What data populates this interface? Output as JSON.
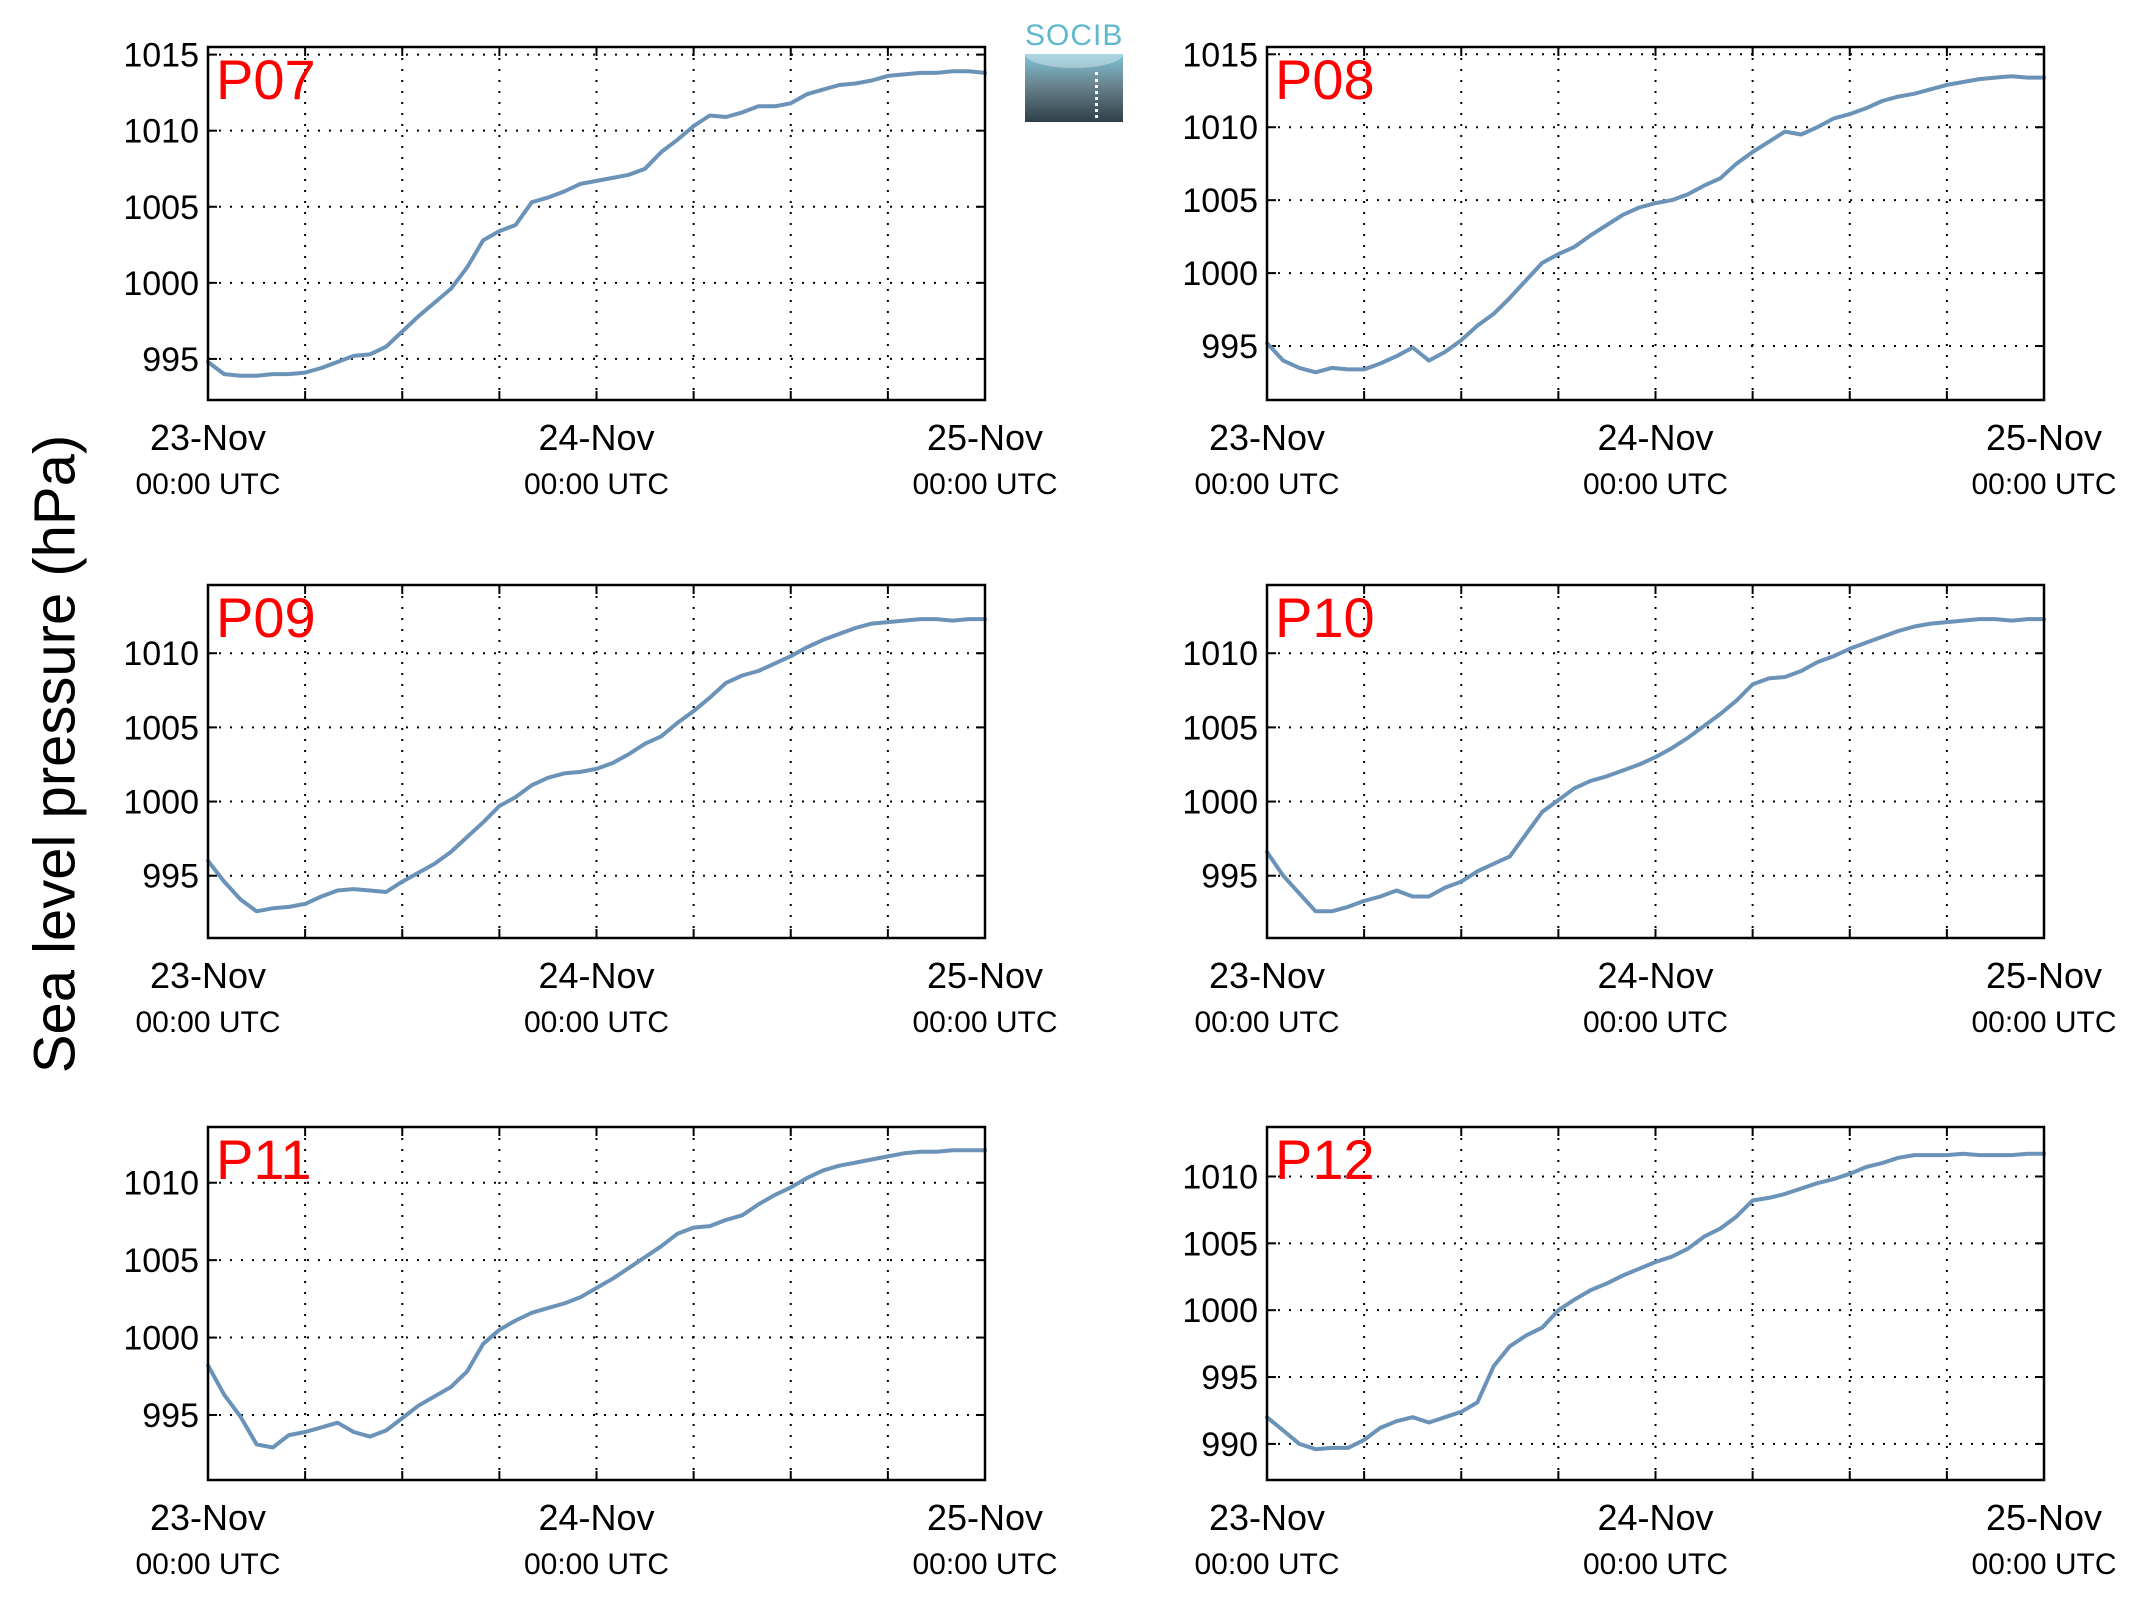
{
  "figure": {
    "ylabel": "Sea level pressure (hPa)",
    "logo_text": "SOCIB",
    "colors": {
      "line": "#6b93b8",
      "station_label": "#ff0000",
      "axes": "#000000",
      "grid": "#000000"
    },
    "grid": "dotted"
  },
  "chart_data": [
    {
      "type": "line",
      "title": "P07",
      "x_ticks": [
        0,
        24,
        48
      ],
      "xtick_labels": [
        [
          "23-Nov",
          "00:00 UTC"
        ],
        [
          "24-Nov",
          "00:00 UTC"
        ],
        [
          "25-Nov",
          "00:00 UTC"
        ]
      ],
      "x_grid": [
        0,
        6,
        12,
        18,
        24,
        30,
        36,
        42,
        48
      ],
      "xlim": [
        0,
        48
      ],
      "ylim": [
        992.3,
        1015.5
      ],
      "yticks": [
        995,
        1000,
        1005,
        1010,
        1015
      ],
      "series": [
        {
          "x": [
            0,
            1,
            2,
            3,
            4,
            5,
            6,
            7,
            8,
            9,
            10,
            11,
            12,
            13,
            14,
            15,
            16,
            17,
            18,
            19,
            20,
            21,
            22,
            23,
            24,
            25,
            26,
            27,
            28,
            29,
            30,
            31,
            32,
            33,
            34,
            35,
            36,
            37,
            38,
            39,
            40,
            41,
            42,
            43,
            44,
            45,
            46,
            47,
            48
          ],
          "y": [
            994.8,
            994.0,
            993.9,
            993.9,
            994.0,
            994.0,
            994.1,
            994.4,
            994.8,
            995.2,
            995.3,
            995.8,
            996.8,
            997.8,
            998.7,
            999.6,
            1001.0,
            1002.8,
            1003.4,
            1003.8,
            1005.3,
            1005.6,
            1006.0,
            1006.5,
            1006.7,
            1006.9,
            1007.1,
            1007.5,
            1008.6,
            1009.4,
            1010.3,
            1011.0,
            1010.9,
            1011.2,
            1011.6,
            1011.6,
            1011.8,
            1012.4,
            1012.7,
            1013.0,
            1013.1,
            1013.3,
            1013.6,
            1013.7,
            1013.8,
            1013.8,
            1013.9,
            1013.9,
            1013.8
          ]
        }
      ]
    },
    {
      "type": "line",
      "title": "P08",
      "x_ticks": [
        0,
        24,
        48
      ],
      "xtick_labels": [
        [
          "23-Nov",
          "00:00 UTC"
        ],
        [
          "24-Nov",
          "00:00 UTC"
        ],
        [
          "25-Nov",
          "00:00 UTC"
        ]
      ],
      "x_grid": [
        0,
        6,
        12,
        18,
        24,
        30,
        36,
        42,
        48
      ],
      "xlim": [
        0,
        48
      ],
      "ylim": [
        991.3,
        1015.5
      ],
      "yticks": [
        995,
        1000,
        1005,
        1010,
        1015
      ],
      "series": [
        {
          "x": [
            0,
            1,
            2,
            3,
            4,
            5,
            6,
            7,
            8,
            9,
            10,
            11,
            12,
            13,
            14,
            15,
            16,
            17,
            18,
            19,
            20,
            21,
            22,
            23,
            24,
            25,
            26,
            27,
            28,
            29,
            30,
            31,
            32,
            33,
            34,
            35,
            36,
            37,
            38,
            39,
            40,
            41,
            42,
            43,
            44,
            45,
            46,
            47,
            48
          ],
          "y": [
            995.2,
            994.0,
            993.5,
            993.2,
            993.5,
            993.4,
            993.4,
            993.8,
            994.3,
            994.9,
            994.0,
            994.6,
            995.4,
            996.4,
            997.2,
            998.3,
            999.5,
            1000.7,
            1001.3,
            1001.8,
            1002.6,
            1003.3,
            1004.0,
            1004.5,
            1004.8,
            1005.0,
            1005.4,
            1006.0,
            1006.5,
            1007.5,
            1008.3,
            1009.0,
            1009.7,
            1009.5,
            1010.0,
            1010.6,
            1010.9,
            1011.3,
            1011.8,
            1012.1,
            1012.3,
            1012.6,
            1012.9,
            1013.1,
            1013.3,
            1013.4,
            1013.5,
            1013.4,
            1013.4
          ]
        }
      ]
    },
    {
      "type": "line",
      "title": "P09",
      "x_ticks": [
        0,
        24,
        48
      ],
      "xtick_labels": [
        [
          "23-Nov",
          "00:00 UTC"
        ],
        [
          "24-Nov",
          "00:00 UTC"
        ],
        [
          "25-Nov",
          "00:00 UTC"
        ]
      ],
      "x_grid": [
        0,
        6,
        12,
        18,
        24,
        30,
        36,
        42,
        48
      ],
      "xlim": [
        0,
        48
      ],
      "ylim": [
        990.8,
        1014.6
      ],
      "yticks": [
        995,
        1000,
        1005,
        1010
      ],
      "series": [
        {
          "x": [
            0,
            1,
            2,
            3,
            4,
            5,
            6,
            7,
            8,
            9,
            10,
            11,
            12,
            13,
            14,
            15,
            16,
            17,
            18,
            19,
            20,
            21,
            22,
            23,
            24,
            25,
            26,
            27,
            28,
            29,
            30,
            31,
            32,
            33,
            34,
            35,
            36,
            37,
            38,
            39,
            40,
            41,
            42,
            43,
            44,
            45,
            46,
            47,
            48
          ],
          "y": [
            996.0,
            994.6,
            993.4,
            992.6,
            992.8,
            992.9,
            993.1,
            993.6,
            994.0,
            994.1,
            994.0,
            993.9,
            994.6,
            995.2,
            995.8,
            996.6,
            997.6,
            998.6,
            999.7,
            1000.3,
            1001.1,
            1001.6,
            1001.9,
            1002.0,
            1002.2,
            1002.6,
            1003.2,
            1003.9,
            1004.4,
            1005.3,
            1006.1,
            1007.0,
            1008.0,
            1008.5,
            1008.8,
            1009.3,
            1009.8,
            1010.4,
            1010.9,
            1011.3,
            1011.7,
            1012.0,
            1012.1,
            1012.2,
            1012.3,
            1012.3,
            1012.2,
            1012.3,
            1012.3
          ]
        }
      ]
    },
    {
      "type": "line",
      "title": "P10",
      "x_ticks": [
        0,
        24,
        48
      ],
      "xtick_labels": [
        [
          "23-Nov",
          "00:00 UTC"
        ],
        [
          "24-Nov",
          "00:00 UTC"
        ],
        [
          "25-Nov",
          "00:00 UTC"
        ]
      ],
      "x_grid": [
        0,
        6,
        12,
        18,
        24,
        30,
        36,
        42,
        48
      ],
      "xlim": [
        0,
        48
      ],
      "ylim": [
        990.8,
        1014.6
      ],
      "yticks": [
        995,
        1000,
        1005,
        1010
      ],
      "series": [
        {
          "x": [
            0,
            1,
            2,
            3,
            4,
            5,
            6,
            7,
            8,
            9,
            10,
            11,
            12,
            13,
            14,
            15,
            16,
            17,
            18,
            19,
            20,
            21,
            22,
            23,
            24,
            25,
            26,
            27,
            28,
            29,
            30,
            31,
            32,
            33,
            34,
            35,
            36,
            37,
            38,
            39,
            40,
            41,
            42,
            43,
            44,
            45,
            46,
            47,
            48
          ],
          "y": [
            996.6,
            995.0,
            993.8,
            992.6,
            992.6,
            992.9,
            993.3,
            993.6,
            994.0,
            993.6,
            993.6,
            994.2,
            994.6,
            995.3,
            995.8,
            996.3,
            997.8,
            999.3,
            1000.1,
            1000.9,
            1001.4,
            1001.7,
            1002.1,
            1002.5,
            1003.0,
            1003.6,
            1004.3,
            1005.1,
            1005.9,
            1006.8,
            1007.9,
            1008.3,
            1008.4,
            1008.8,
            1009.4,
            1009.8,
            1010.3,
            1010.7,
            1011.1,
            1011.5,
            1011.8,
            1012.0,
            1012.1,
            1012.2,
            1012.3,
            1012.3,
            1012.2,
            1012.3,
            1012.3
          ]
        }
      ]
    },
    {
      "type": "line",
      "title": "P11",
      "x_ticks": [
        0,
        24,
        48
      ],
      "xtick_labels": [
        [
          "23-Nov",
          "00:00 UTC"
        ],
        [
          "24-Nov",
          "00:00 UTC"
        ],
        [
          "25-Nov",
          "00:00 UTC"
        ]
      ],
      "x_grid": [
        0,
        6,
        12,
        18,
        24,
        30,
        36,
        42,
        48
      ],
      "xlim": [
        0,
        48
      ],
      "ylim": [
        990.8,
        1013.6
      ],
      "yticks": [
        995,
        1000,
        1005,
        1010
      ],
      "series": [
        {
          "x": [
            0,
            1,
            2,
            3,
            4,
            5,
            6,
            7,
            8,
            9,
            10,
            11,
            12,
            13,
            14,
            15,
            16,
            17,
            18,
            19,
            20,
            21,
            22,
            23,
            24,
            25,
            26,
            27,
            28,
            29,
            30,
            31,
            32,
            33,
            34,
            35,
            36,
            37,
            38,
            39,
            40,
            41,
            42,
            43,
            44,
            45,
            46,
            47,
            48
          ],
          "y": [
            998.2,
            996.3,
            994.9,
            993.1,
            992.9,
            993.7,
            993.9,
            994.2,
            994.5,
            993.9,
            993.6,
            994.0,
            994.8,
            995.6,
            996.2,
            996.8,
            997.8,
            999.6,
            1000.5,
            1001.1,
            1001.6,
            1001.9,
            1002.2,
            1002.6,
            1003.2,
            1003.8,
            1004.5,
            1005.2,
            1005.9,
            1006.7,
            1007.1,
            1007.2,
            1007.6,
            1007.9,
            1008.6,
            1009.2,
            1009.7,
            1010.3,
            1010.8,
            1011.1,
            1011.3,
            1011.5,
            1011.7,
            1011.9,
            1012.0,
            1012.0,
            1012.1,
            1012.1,
            1012.1
          ]
        }
      ]
    },
    {
      "type": "line",
      "title": "P12",
      "x_ticks": [
        0,
        24,
        48
      ],
      "xtick_labels": [
        [
          "23-Nov",
          "00:00 UTC"
        ],
        [
          "24-Nov",
          "00:00 UTC"
        ],
        [
          "25-Nov",
          "00:00 UTC"
        ]
      ],
      "x_grid": [
        0,
        6,
        12,
        18,
        24,
        30,
        36,
        42,
        48
      ],
      "xlim": [
        0,
        48
      ],
      "ylim": [
        987.3,
        1013.7
      ],
      "yticks": [
        990,
        995,
        1000,
        1005,
        1010
      ],
      "series": [
        {
          "x": [
            0,
            1,
            2,
            3,
            4,
            5,
            6,
            7,
            8,
            9,
            10,
            11,
            12,
            13,
            14,
            15,
            16,
            17,
            18,
            19,
            20,
            21,
            22,
            23,
            24,
            25,
            26,
            27,
            28,
            29,
            30,
            31,
            32,
            33,
            34,
            35,
            36,
            37,
            38,
            39,
            40,
            41,
            42,
            43,
            44,
            45,
            46,
            47,
            48
          ],
          "y": [
            992.0,
            991.0,
            990.0,
            989.6,
            989.7,
            989.7,
            990.3,
            991.2,
            991.7,
            992.0,
            991.6,
            992.0,
            992.4,
            993.1,
            995.8,
            997.3,
            998.1,
            998.7,
            1000.0,
            1000.8,
            1001.5,
            1002.0,
            1002.6,
            1003.1,
            1003.6,
            1004.0,
            1004.6,
            1005.5,
            1006.1,
            1007.0,
            1008.2,
            1008.4,
            1008.7,
            1009.1,
            1009.5,
            1009.8,
            1010.2,
            1010.7,
            1011.0,
            1011.4,
            1011.6,
            1011.6,
            1011.6,
            1011.7,
            1011.6,
            1011.6,
            1011.6,
            1011.7,
            1011.7
          ]
        }
      ]
    }
  ]
}
